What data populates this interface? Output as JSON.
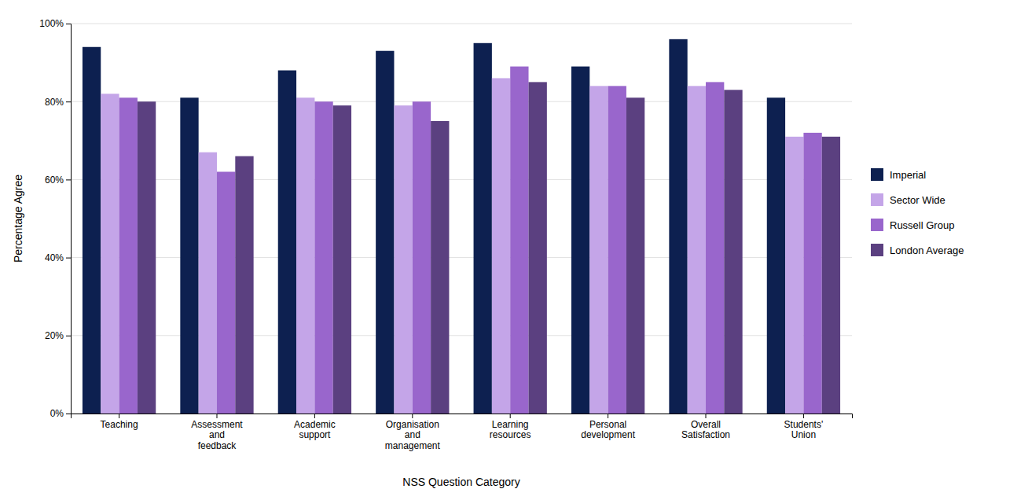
{
  "chart_data": {
    "type": "bar",
    "categories": [
      "Teaching",
      "Assessment\nand\nfeedback",
      "Academic\nsupport",
      "Organisation\nand\nmanagement",
      "Learning\nresources",
      "Personal\ndevelopment",
      "Overall\nSatisfaction",
      "Students'\nUnion"
    ],
    "series": [
      {
        "name": "Imperial",
        "color": "#0d2050",
        "values": [
          94,
          81,
          88,
          93,
          95,
          89,
          96,
          81
        ]
      },
      {
        "name": "Sector Wide",
        "color": "#c4a5e8",
        "values": [
          82,
          67,
          81,
          79,
          86,
          84,
          84,
          71
        ]
      },
      {
        "name": "Russell Group",
        "color": "#9966cc",
        "values": [
          81,
          62,
          80,
          80,
          89,
          84,
          85,
          72
        ]
      },
      {
        "name": "London Average",
        "color": "#5b4080",
        "values": [
          80,
          66,
          79,
          75,
          85,
          81,
          83,
          71
        ]
      }
    ],
    "xlabel": "NSS Question Category",
    "ylabel": "Percentage Agree",
    "ylim": [
      0,
      100
    ],
    "yticks": [
      {
        "value": 0,
        "label": "0%"
      },
      {
        "value": 20,
        "label": "20%"
      },
      {
        "value": 40,
        "label": "40%"
      },
      {
        "value": 60,
        "label": "60%"
      },
      {
        "value": 80,
        "label": "80%"
      },
      {
        "value": 100,
        "label": "100%"
      }
    ],
    "grid": true,
    "legend": "right"
  }
}
